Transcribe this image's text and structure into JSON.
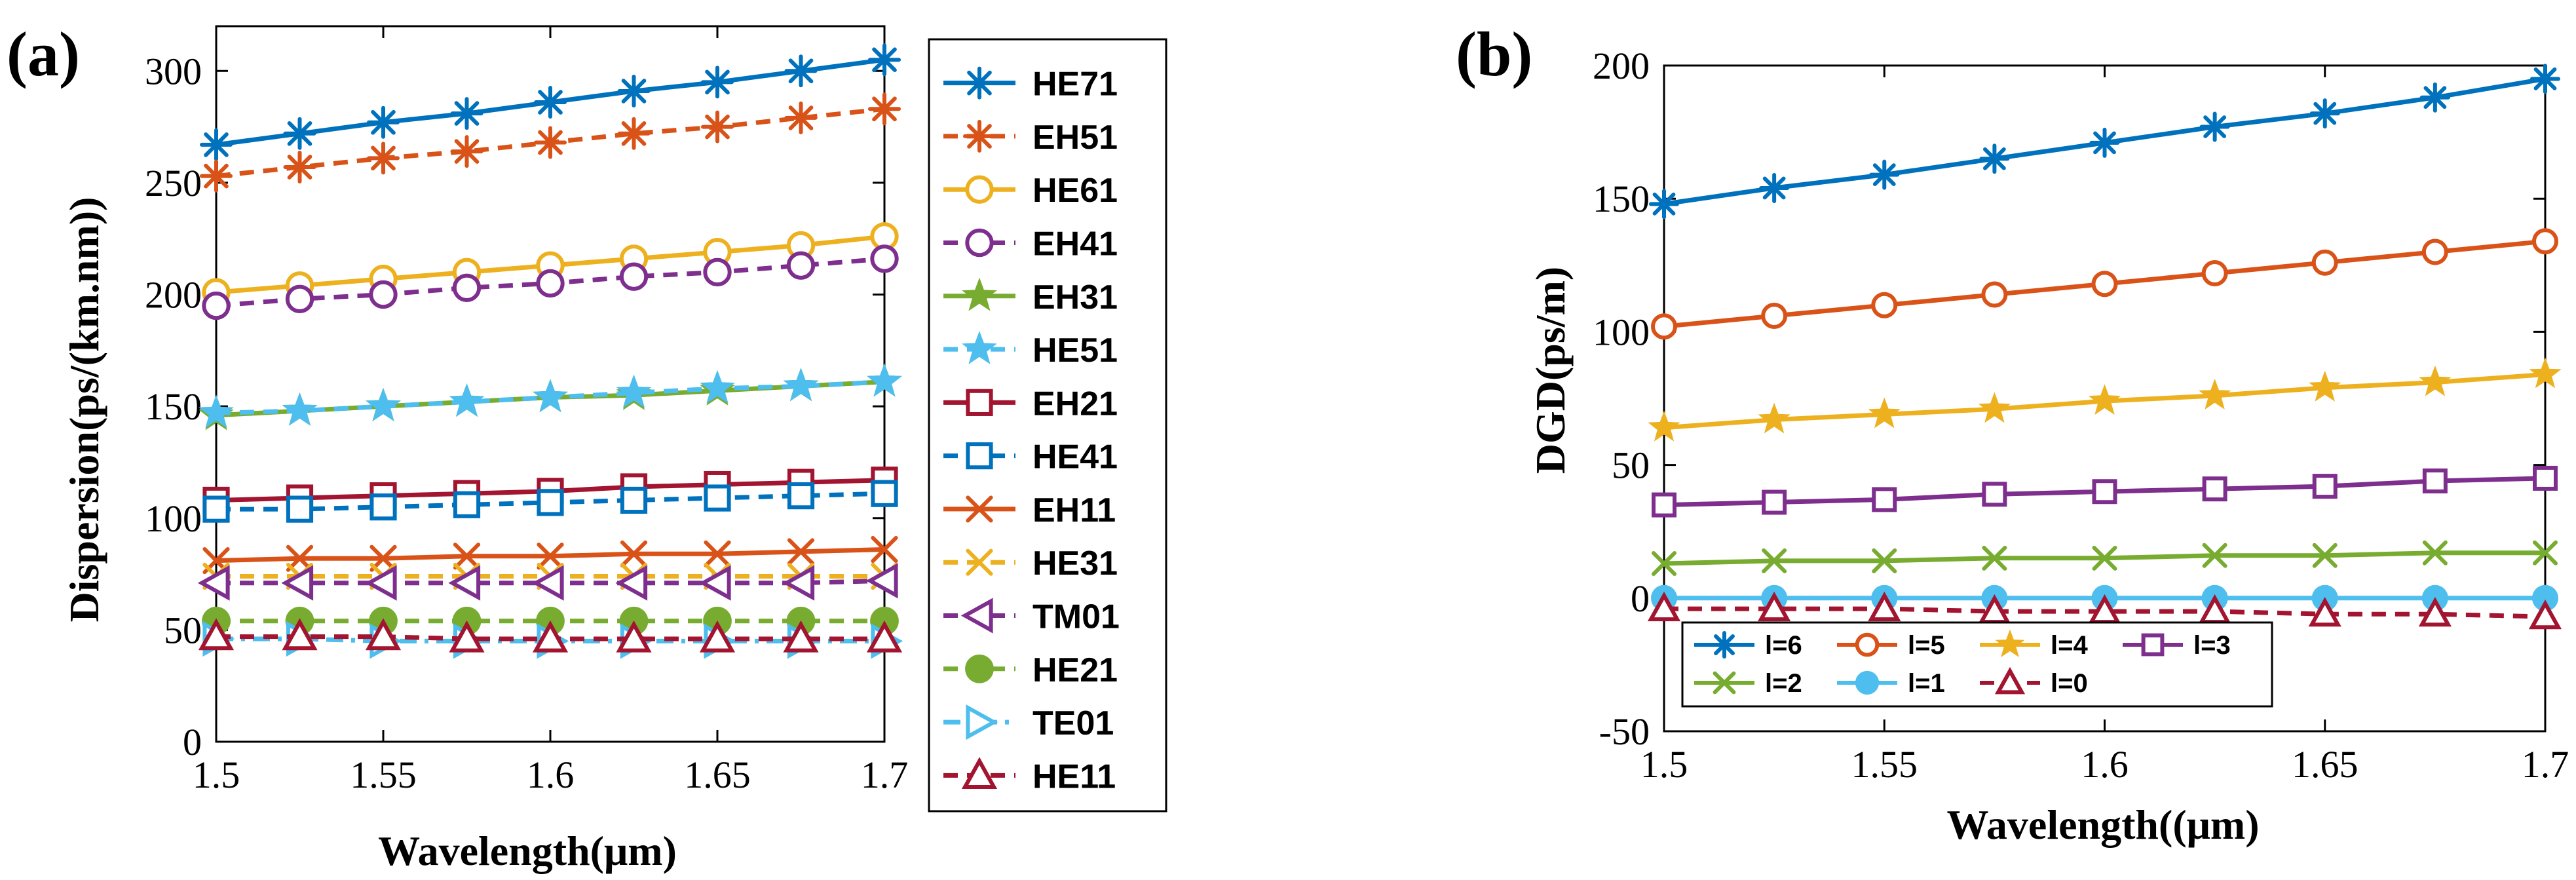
{
  "chart_data": [
    {
      "panel": "(a)",
      "type": "line",
      "xlabel": "Wavelength(μm)",
      "ylabel": "Dispersion(ps/(km.nm))",
      "xlim": [
        1.5,
        1.7
      ],
      "ylim": [
        0,
        320
      ],
      "xticks": [
        1.5,
        1.55,
        1.6,
        1.65,
        1.7
      ],
      "xtick_labels": [
        "1.5",
        "1.55",
        "1.6",
        "1.65",
        "1.7"
      ],
      "yticks": [
        0,
        50,
        100,
        150,
        200,
        250,
        300
      ],
      "ytick_labels": [
        "0",
        "50",
        "100",
        "150",
        "200",
        "250",
        "300"
      ],
      "grid": false,
      "legend_placement": "outside-right",
      "x": [
        1.5,
        1.525,
        1.55,
        1.575,
        1.6,
        1.625,
        1.65,
        1.675,
        1.7
      ],
      "series": [
        {
          "name": "HE71",
          "color": "#0072BD",
          "dash": "solid",
          "marker": "asterisk",
          "values": [
            267,
            272,
            277,
            281,
            286,
            291,
            295,
            300,
            305
          ]
        },
        {
          "name": "EH51",
          "color": "#D95319",
          "dash": "dashed",
          "marker": "asterisk",
          "values": [
            253,
            257,
            261,
            264,
            268,
            272,
            275,
            279,
            283
          ]
        },
        {
          "name": "HE61",
          "color": "#EDB120",
          "dash": "solid",
          "marker": "circle-open",
          "values": [
            201,
            204,
            207,
            210,
            213,
            216,
            219,
            222,
            226
          ]
        },
        {
          "name": "EH41",
          "color": "#7E2F8E",
          "dash": "dashed",
          "marker": "circle-open",
          "values": [
            195,
            198,
            200,
            203,
            205,
            208,
            210,
            213,
            216
          ]
        },
        {
          "name": "EH31",
          "color": "#77AC30",
          "dash": "solid",
          "marker": "star",
          "values": [
            146,
            148,
            150,
            152,
            154,
            155,
            157,
            159,
            161
          ]
        },
        {
          "name": "HE51",
          "color": "#4DBEEE",
          "dash": "dashed",
          "marker": "star",
          "values": [
            147,
            148,
            150,
            152,
            154,
            156,
            158,
            159,
            161
          ]
        },
        {
          "name": "EH21",
          "color": "#A2142F",
          "dash": "solid",
          "marker": "square-open",
          "values": [
            108,
            109,
            110,
            111,
            112,
            114,
            115,
            116,
            117
          ]
        },
        {
          "name": "HE41",
          "color": "#0072BD",
          "dash": "dashed",
          "marker": "square-open",
          "values": [
            104,
            104,
            105,
            106,
            107,
            108,
            109,
            110,
            111
          ]
        },
        {
          "name": "EH11",
          "color": "#D95319",
          "dash": "solid",
          "marker": "x",
          "values": [
            81,
            82,
            82,
            83,
            83,
            84,
            84,
            85,
            86
          ]
        },
        {
          "name": "HE31",
          "color": "#EDB120",
          "dash": "dashed",
          "marker": "x",
          "values": [
            74,
            74,
            74,
            74,
            74,
            74,
            74,
            74,
            74
          ]
        },
        {
          "name": "TM01",
          "color": "#7E2F8E",
          "dash": "dashed",
          "marker": "triangle-left-open",
          "values": [
            71,
            71,
            71,
            71,
            71,
            71,
            71,
            71,
            72
          ]
        },
        {
          "name": "HE21",
          "color": "#77AC30",
          "dash": "dashed",
          "marker": "circle-filled",
          "values": [
            54,
            54,
            54,
            54,
            54,
            54,
            54,
            54,
            54
          ]
        },
        {
          "name": "TE01",
          "color": "#4DBEEE",
          "dash": "dashdot",
          "marker": "triangle-right-open",
          "values": [
            46,
            46,
            45,
            45,
            45,
            45,
            45,
            45,
            45
          ]
        },
        {
          "name": "HE11",
          "color": "#A2142F",
          "dash": "dashed",
          "marker": "triangle-up-open",
          "values": [
            47,
            47,
            47,
            46,
            46,
            46,
            46,
            46,
            46
          ]
        }
      ]
    },
    {
      "panel": "(b)",
      "type": "line",
      "xlabel": "Wavelength((μm)",
      "ylabel": "DGD(ps/m)",
      "xlim": [
        1.5,
        1.7
      ],
      "ylim": [
        -50,
        200
      ],
      "xticks": [
        1.5,
        1.55,
        1.6,
        1.65,
        1.7
      ],
      "xtick_labels": [
        "1.5",
        "1.55",
        "1.6",
        "1.65",
        "1.7"
      ],
      "yticks": [
        -50,
        0,
        50,
        100,
        150,
        200
      ],
      "ytick_labels": [
        "-50",
        "0",
        "50",
        "100",
        "150",
        "200"
      ],
      "grid": false,
      "legend_placement": "bottom-left",
      "x": [
        1.5,
        1.525,
        1.55,
        1.575,
        1.6,
        1.625,
        1.65,
        1.675,
        1.7
      ],
      "series": [
        {
          "name": "l=6",
          "color": "#0072BD",
          "dash": "solid",
          "marker": "asterisk",
          "values": [
            148,
            154,
            159,
            165,
            171,
            177,
            182,
            188,
            195
          ]
        },
        {
          "name": "l=5",
          "color": "#D95319",
          "dash": "solid",
          "marker": "circle-open",
          "values": [
            102,
            106,
            110,
            114,
            118,
            122,
            126,
            130,
            134
          ]
        },
        {
          "name": "l=4",
          "color": "#EDB120",
          "dash": "solid",
          "marker": "star",
          "values": [
            64,
            67,
            69,
            71,
            74,
            76,
            79,
            81,
            84
          ]
        },
        {
          "name": "l=3",
          "color": "#7E2F8E",
          "dash": "solid",
          "marker": "square-open",
          "values": [
            35,
            36,
            37,
            39,
            40,
            41,
            42,
            44,
            45
          ]
        },
        {
          "name": "l=2",
          "color": "#77AC30",
          "dash": "solid",
          "marker": "x",
          "values": [
            13,
            14,
            14,
            15,
            15,
            16,
            16,
            17,
            17
          ]
        },
        {
          "name": "l=1",
          "color": "#4DBEEE",
          "dash": "solid",
          "marker": "circle-filled",
          "values": [
            0,
            0,
            0,
            0,
            0,
            0,
            0,
            0,
            0
          ]
        },
        {
          "name": "l=0",
          "color": "#A2142F",
          "dash": "dashed",
          "marker": "triangle-up-open",
          "values": [
            -4,
            -4,
            -4,
            -5,
            -5,
            -5,
            -6,
            -6,
            -7
          ]
        }
      ]
    }
  ]
}
